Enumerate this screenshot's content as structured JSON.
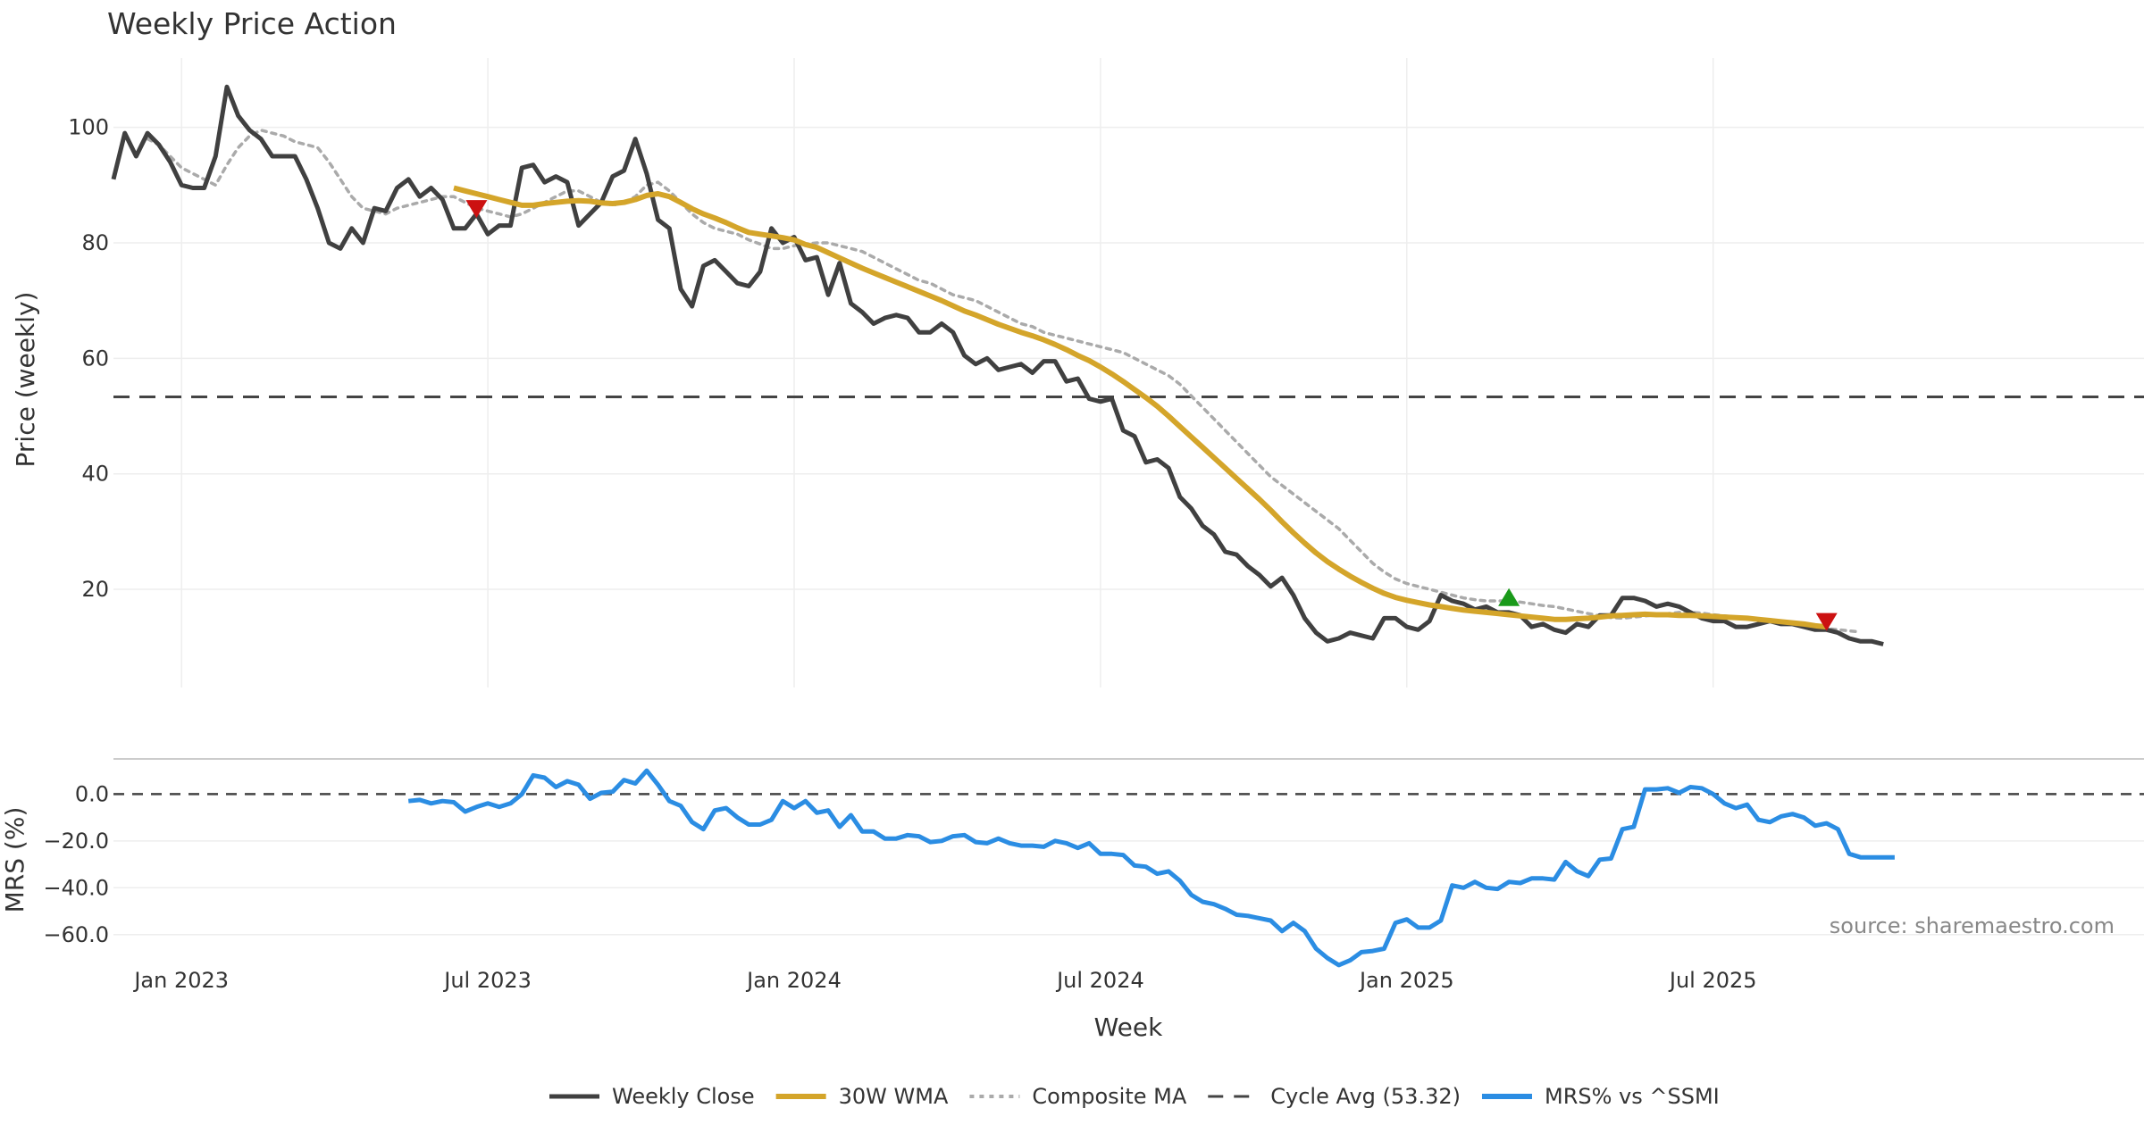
{
  "chart_data": {
    "type": "line",
    "title": "Weekly Price Action",
    "xlabel": "Week",
    "ylabel": "Price (weekly)",
    "ylabel2": "MRS (%)",
    "source": "source: sharemaestro.com",
    "x_tick_labels": [
      "Jan 2023",
      "Jul 2023",
      "Jan 2024",
      "Jul 2024",
      "Jan 2025",
      "Jul 2025"
    ],
    "x_tick_indices": [
      6,
      33,
      60,
      87,
      114,
      141
    ],
    "x_range": [
      0,
      160
    ],
    "price_ylim": [
      3,
      112
    ],
    "price_yticks": [
      20,
      40,
      60,
      80,
      100
    ],
    "mrs_ylim": [
      -70,
      15
    ],
    "mrs_yticks": [
      0.0,
      -20.0,
      -40.0,
      -60.0
    ],
    "mrs_ytick_labels": [
      "0.0",
      "−20.0",
      "−40.0",
      "−60.0"
    ],
    "cycle_avg": 53.32,
    "colors": {
      "close": "#404040",
      "wma": "#d4a52a",
      "composite": "#aaaaaa",
      "cycle": "#444444",
      "mrs": "#2b8de3",
      "sell_marker": "#cc1111",
      "buy_marker": "#1a9a1a",
      "grid": "#eeeeee",
      "divider": "#cccccc"
    },
    "series": [
      {
        "name": "Weekly Close",
        "start_index": 0,
        "values": [
          91,
          99,
          95,
          99,
          97,
          94,
          90,
          89.5,
          89.5,
          95,
          107,
          102,
          99.5,
          98,
          95,
          95,
          95,
          91,
          86,
          80,
          79,
          82.5,
          80,
          86,
          85.5,
          89.5,
          91,
          88,
          89.5,
          87.5,
          82.5,
          82.5,
          85,
          81.5,
          83,
          83,
          93,
          93.5,
          90.5,
          91.5,
          90.5,
          83,
          85,
          87,
          91.5,
          92.5,
          98,
          92,
          84,
          82.5,
          72,
          69,
          76,
          77,
          75,
          73,
          72.5,
          75,
          82.5,
          80,
          81,
          77,
          77.5,
          71,
          76.5,
          69.5,
          68,
          66,
          67,
          67.5,
          67,
          64.5,
          64.5,
          66,
          64.5,
          60.5,
          59,
          60,
          58,
          58.5,
          59,
          57.5,
          59.5,
          59.5,
          56,
          56.5,
          53,
          52.5,
          53,
          47.5,
          46.5,
          42,
          42.5,
          41,
          36,
          34,
          31,
          29.5,
          26.5,
          26,
          24,
          22.5,
          20.5,
          22,
          19,
          15,
          12.5,
          11,
          11.5,
          12.5,
          12,
          11.5,
          15,
          15,
          13.5,
          13,
          14.5,
          19,
          18,
          17.5,
          16.5,
          17,
          16,
          16,
          15.5,
          13.5,
          14,
          13,
          12.5,
          14,
          13.5,
          15.5,
          15.5,
          18.5,
          18.5,
          18,
          17,
          17.5,
          17,
          16,
          15,
          14.5,
          14.5,
          13.5,
          13.5,
          14,
          14.5,
          14,
          14,
          13.5,
          13,
          13,
          12.5,
          11.5,
          11,
          11,
          10.5
        ]
      },
      {
        "name": "30W WMA",
        "start_index": 30,
        "values": [
          89.5,
          89,
          88.5,
          88,
          87.5,
          87,
          86.5,
          86.5,
          86.8,
          87,
          87.2,
          87.3,
          87.2,
          86.9,
          86.8,
          87,
          87.5,
          88.2,
          88.5,
          88,
          87,
          85.9,
          85,
          84.3,
          83.5,
          82.6,
          81.8,
          81.5,
          81.2,
          80.9,
          80.5,
          79.7,
          79.2,
          78.3,
          77.4,
          76.5,
          75.6,
          74.8,
          74,
          73.2,
          72.4,
          71.6,
          70.8,
          70,
          69.1,
          68.2,
          67.5,
          66.7,
          65.9,
          65.2,
          64.5,
          63.9,
          63.2,
          62.4,
          61.5,
          60.5,
          59.6,
          58.5,
          57.3,
          56,
          54.6,
          53.2,
          51.7,
          50,
          48.2,
          46.4,
          44.6,
          42.8,
          41,
          39.2,
          37.4,
          35.6,
          33.7,
          31.7,
          29.8,
          28,
          26.3,
          24.8,
          23.5,
          22.3,
          21.2,
          20.2,
          19.3,
          18.6,
          18.1,
          17.7,
          17.3,
          17,
          16.7,
          16.4,
          16.2,
          16,
          15.8,
          15.6,
          15.4,
          15.2,
          15,
          14.8,
          14.8,
          14.9,
          15,
          15.2,
          15.4,
          15.5,
          15.6,
          15.7,
          15.6,
          15.6,
          15.5,
          15.5,
          15.4,
          15.3,
          15.2,
          15.1,
          15,
          14.8,
          14.6,
          14.4,
          14.2,
          14,
          13.7,
          13.5
        ]
      },
      {
        "name": "Composite MA",
        "start_index": 3,
        "values": [
          98,
          97,
          95,
          93,
          92,
          91,
          90,
          93.5,
          96.5,
          98.5,
          99.5,
          99,
          98.5,
          97.5,
          97,
          96.5,
          94,
          91,
          88,
          86,
          85.5,
          85,
          86,
          86.5,
          87,
          87.5,
          88,
          88,
          87,
          86,
          85.5,
          85,
          84.5,
          85,
          86,
          87,
          88,
          89,
          89,
          88,
          87,
          86.5,
          87,
          88,
          90,
          90.5,
          89,
          87,
          85,
          83.5,
          82.5,
          82,
          81.5,
          80.5,
          79.8,
          79,
          79,
          79.5,
          79.8,
          80,
          80,
          79.5,
          79,
          78.5,
          77.5,
          76.5,
          75.5,
          74.5,
          73.5,
          73,
          72,
          71,
          70.5,
          70,
          69,
          68,
          67,
          66,
          65.5,
          64.5,
          64,
          63.5,
          63,
          62.5,
          62,
          61.5,
          61,
          60,
          59,
          58,
          57,
          55.5,
          53.5,
          51.5,
          49.5,
          47.5,
          45.5,
          43.5,
          41.5,
          39.5,
          38,
          36.5,
          35,
          33.5,
          32,
          30.5,
          28.5,
          26.5,
          24.5,
          23,
          21.8,
          21,
          20.5,
          20,
          19.5,
          19,
          18.5,
          18.2,
          18,
          18,
          18,
          17.8,
          17.5,
          17.2,
          17,
          16.6,
          16.2,
          15.8,
          15.4,
          15.1,
          15,
          15.2,
          15.4,
          15.6,
          15.8,
          16,
          16,
          15.9,
          15.6,
          15.4,
          15.2,
          15,
          14.8,
          14.6,
          14.4,
          14.1,
          13.8,
          13.5,
          13.2,
          13,
          12.8,
          12.6
        ]
      },
      {
        "name": "MRS% vs ^SSMI",
        "start_index": 26,
        "values": [
          -3,
          -2.5,
          -4,
          -3,
          -3.5,
          -7.5,
          -5.5,
          -4,
          -5.5,
          -4,
          0,
          8,
          7,
          3,
          5.5,
          4,
          -2,
          0.5,
          1,
          6,
          4.5,
          10,
          4,
          -3,
          -5,
          -12,
          -15,
          -7,
          -6,
          -10,
          -13,
          -13,
          -11,
          -3,
          -6,
          -3,
          -8,
          -7,
          -14,
          -9,
          -16,
          -16,
          -19,
          -19,
          -17.5,
          -18,
          -20.5,
          -20,
          -18,
          -17.5,
          -20.5,
          -21,
          -19,
          -21,
          -22,
          -22,
          -22.5,
          -20,
          -21,
          -23,
          -21,
          -25.5,
          -25.5,
          -26,
          -30.5,
          -31,
          -34,
          -33,
          -37,
          -43,
          -46,
          -47,
          -49,
          -51.5,
          -52,
          -53,
          -54,
          -58.5,
          -55,
          -58.5,
          -66,
          -70,
          -73,
          -71,
          -67.5,
          -67,
          -66,
          -55,
          -53.5,
          -57,
          -57,
          -54,
          -39,
          -40,
          -37.5,
          -40,
          -40.5,
          -37.5,
          -38,
          -36,
          -36,
          -36.5,
          -29,
          -33,
          -35,
          -28,
          -27.5,
          -15,
          -14,
          2,
          2,
          2.5,
          0.5,
          3,
          2.5,
          0,
          -4,
          -6,
          -4.5,
          -11,
          -12,
          -9.5,
          -8.5,
          -10,
          -13.5,
          -12.5,
          -15,
          -25.5,
          -27,
          -27,
          -27,
          -27
        ]
      }
    ],
    "signals": [
      {
        "type": "sell",
        "index": 32,
        "value": 86
      },
      {
        "type": "buy",
        "index": 123,
        "value": 18.5
      },
      {
        "type": "sell",
        "index": 151,
        "value": 14.5
      }
    ],
    "legend": {
      "position": "bottom-center",
      "items": [
        {
          "label": "Weekly Close",
          "style": "solid",
          "color": "#404040"
        },
        {
          "label": "30W WMA",
          "style": "solid-thick",
          "color": "#d4a52a"
        },
        {
          "label": "Composite MA",
          "style": "dotted",
          "color": "#aaaaaa"
        },
        {
          "label": "Cycle Avg (53.32)",
          "style": "dashed",
          "color": "#444444"
        },
        {
          "label": "MRS% vs ^SSMI",
          "style": "solid-thick",
          "color": "#2b8de3"
        }
      ]
    }
  }
}
